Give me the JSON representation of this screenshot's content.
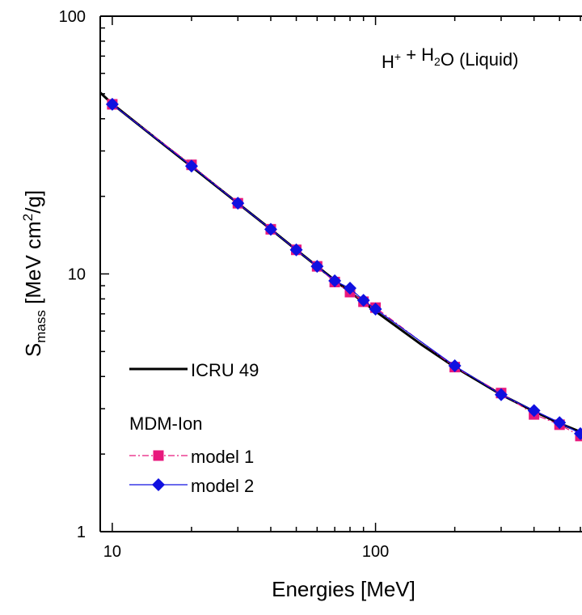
{
  "chart_data": {
    "type": "line",
    "title": "",
    "annotation": {
      "parts": [
        {
          "text": "H",
          "sup": "+"
        },
        {
          "text": " + H",
          "sub": "2"
        },
        {
          "text": "O (Liquid)"
        }
      ]
    },
    "xlabel": "Energies [MeV]",
    "ylabel": {
      "main": "S",
      "sub": "mass",
      "rest1": " [MeV cm",
      "sup": "2",
      "rest2": "/g]"
    },
    "xscale": "log",
    "yscale": "log",
    "xlim": [
      9,
      600
    ],
    "ylim": [
      1,
      100
    ],
    "x_ticks": [
      {
        "value": 10,
        "label": "10"
      },
      {
        "value": 100,
        "label": "100"
      }
    ],
    "y_ticks": [
      {
        "value": 1,
        "label": "1"
      },
      {
        "value": 10,
        "label": "10"
      },
      {
        "value": 100,
        "label": "100"
      }
    ],
    "grid": false,
    "legend_placement": "bottom-left",
    "legend_group_title": "MDM-Ion",
    "series": [
      {
        "name": "ICRU 49",
        "style": "solid-line",
        "color": "#000000",
        "x": [
          9,
          10,
          15,
          20,
          30,
          40,
          50,
          60,
          70,
          80,
          90,
          100,
          150,
          200,
          300,
          400,
          500,
          600
        ],
        "y": [
          50.5,
          45.7,
          32.9,
          26.1,
          18.8,
          14.9,
          12.4,
          10.7,
          9.45,
          8.5,
          7.76,
          7.16,
          5.3,
          4.35,
          3.4,
          2.93,
          2.63,
          2.44
        ]
      },
      {
        "name": "model 1",
        "style": "dashdot-line-square",
        "color": "#e8197d",
        "x": [
          10,
          20,
          30,
          40,
          50,
          60,
          70,
          80,
          90,
          100,
          200,
          300,
          400,
          500,
          600
        ],
        "y": [
          45.5,
          26.5,
          18.8,
          14.9,
          12.4,
          10.7,
          9.3,
          8.5,
          7.8,
          7.4,
          4.35,
          3.45,
          2.85,
          2.6,
          2.35
        ]
      },
      {
        "name": "model 2",
        "style": "solid-line-diamond",
        "color": "#1010e0",
        "x": [
          10,
          20,
          30,
          40,
          50,
          60,
          70,
          80,
          90,
          100,
          200,
          300,
          400,
          500,
          600
        ],
        "y": [
          45.5,
          26.2,
          18.8,
          14.9,
          12.4,
          10.7,
          9.4,
          8.8,
          7.9,
          7.3,
          4.4,
          3.4,
          2.95,
          2.65,
          2.4
        ]
      }
    ]
  }
}
